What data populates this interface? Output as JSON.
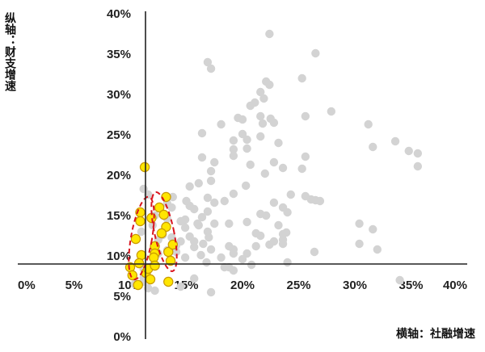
{
  "chart_data": {
    "type": "scatter",
    "title": "",
    "xlabel": "横轴：社融增速",
    "ylabel": "纵轴：财支增速",
    "xlim": [
      0,
      40
    ],
    "ylim": [
      0,
      40
    ],
    "x_ticks": [
      "0%",
      "5%",
      "10%",
      "15%",
      "20%",
      "25%",
      "30%",
      "35%",
      "40%"
    ],
    "y_ticks": [
      "0%",
      "5%",
      "10%",
      "15%",
      "20%",
      "25%",
      "30%",
      "35%",
      "40%"
    ],
    "grid": false,
    "colors": {
      "gray": "#d3d3d3",
      "highlight_fill": "#ffe600",
      "highlight_stroke": "#c99a00",
      "dashed_ellipse": "#d9141e",
      "axis": "#222222"
    },
    "series": [
      {
        "points": [
          [
            22.4,
            37.5
          ],
          [
            26.5,
            35.1
          ],
          [
            16.9,
            34.0
          ],
          [
            17.2,
            33.2
          ],
          [
            22.1,
            31.6
          ],
          [
            22.4,
            31.2
          ],
          [
            21.6,
            30.3
          ],
          [
            21.9,
            29.5
          ],
          [
            21.1,
            29.0
          ],
          [
            20.7,
            28.6
          ],
          [
            25.3,
            32.0
          ],
          [
            25.6,
            27.3
          ],
          [
            27.9,
            27.9
          ],
          [
            19.6,
            27.1
          ],
          [
            20.0,
            26.9
          ],
          [
            21.6,
            27.3
          ],
          [
            22.8,
            26.5
          ],
          [
            18.1,
            26.3
          ],
          [
            16.4,
            25.2
          ],
          [
            20.0,
            25.1
          ],
          [
            19.2,
            24.3
          ],
          [
            20.4,
            24.4
          ],
          [
            21.6,
            24.8
          ],
          [
            23.2,
            24.0
          ],
          [
            19.2,
            23.2
          ],
          [
            20.4,
            23.3
          ],
          [
            19.2,
            22.4
          ],
          [
            16.4,
            22.2
          ],
          [
            17.5,
            21.6
          ],
          [
            22.8,
            21.6
          ],
          [
            25.6,
            22.3
          ],
          [
            25.3,
            20.8
          ],
          [
            23.6,
            20.9
          ],
          [
            17.2,
            20.5
          ],
          [
            17.2,
            19.3
          ],
          [
            16.1,
            19.0
          ],
          [
            15.3,
            18.6
          ],
          [
            11.2,
            18.3
          ],
          [
            11.6,
            17.6
          ],
          [
            19.2,
            17.7
          ],
          [
            16.9,
            17.2
          ],
          [
            26.1,
            17.0
          ],
          [
            26.5,
            16.9
          ],
          [
            25.6,
            17.4
          ],
          [
            26.9,
            16.8
          ],
          [
            17.5,
            16.6
          ],
          [
            13.3,
            16.5
          ],
          [
            18.4,
            16.8
          ],
          [
            22.8,
            16.6
          ],
          [
            23.6,
            16.0
          ],
          [
            15.7,
            15.8
          ],
          [
            16.9,
            15.5
          ],
          [
            14.9,
            14.5
          ],
          [
            12.2,
            15.0
          ],
          [
            16.4,
            14.8
          ],
          [
            21.6,
            15.2
          ],
          [
            22.1,
            15.0
          ],
          [
            14.5,
            14.3
          ],
          [
            17.5,
            14.0
          ],
          [
            20.4,
            14.2
          ],
          [
            23.2,
            13.8
          ],
          [
            12.0,
            13.8
          ],
          [
            14.9,
            13.5
          ],
          [
            16.1,
            13.8
          ],
          [
            16.9,
            13.0
          ],
          [
            21.2,
            12.8
          ],
          [
            21.6,
            12.5
          ],
          [
            23.6,
            12.7
          ],
          [
            23.9,
            12.9
          ],
          [
            15.3,
            12.4
          ],
          [
            13.7,
            12.3
          ],
          [
            14.5,
            11.8
          ],
          [
            15.7,
            11.8
          ],
          [
            16.5,
            11.5
          ],
          [
            18.8,
            11.2
          ],
          [
            21.2,
            11.2
          ],
          [
            22.4,
            11.4
          ],
          [
            23.6,
            11.5
          ],
          [
            22.8,
            11.8
          ],
          [
            14.1,
            11.3
          ],
          [
            15.7,
            11.1
          ],
          [
            17.2,
            10.8
          ],
          [
            19.2,
            10.8
          ],
          [
            13.3,
            10.7
          ],
          [
            12.5,
            10.3
          ],
          [
            19.2,
            10.3
          ],
          [
            20.4,
            10.3
          ],
          [
            18.1,
            9.8
          ],
          [
            14.9,
            9.8
          ],
          [
            16.8,
            9.2
          ],
          [
            20.0,
            9.6
          ],
          [
            24.0,
            9.2
          ],
          [
            26.4,
            10.5
          ],
          [
            11.6,
            8.6
          ],
          [
            12.0,
            8.8
          ],
          [
            11.2,
            8.4
          ],
          [
            18.8,
            8.6
          ],
          [
            19.2,
            8.2
          ],
          [
            15.7,
            7.2
          ],
          [
            11.2,
            7.3
          ],
          [
            11.2,
            6.8
          ],
          [
            10.4,
            6.5
          ],
          [
            11.6,
            6.0
          ],
          [
            14.5,
            6.2
          ],
          [
            17.2,
            5.5
          ],
          [
            12.2,
            5.7
          ],
          [
            31.2,
            26.3
          ],
          [
            31.6,
            23.5
          ],
          [
            33.6,
            24.2
          ],
          [
            34.8,
            23.0
          ],
          [
            35.6,
            22.7
          ],
          [
            35.6,
            21.1
          ],
          [
            30.4,
            14.0
          ],
          [
            31.6,
            13.3
          ],
          [
            30.4,
            11.5
          ],
          [
            32.0,
            10.8
          ],
          [
            34.0,
            7.0
          ],
          [
            11.0,
            13.0
          ],
          [
            13.7,
            16.0
          ],
          [
            12.5,
            12.0
          ],
          [
            15.3,
            16.2
          ],
          [
            13.3,
            14.6
          ],
          [
            14.1,
            10.5
          ],
          [
            20.8,
            8.9
          ],
          [
            18.4,
            8.6
          ],
          [
            17.0,
            12.3
          ],
          [
            16.3,
            10.1
          ],
          [
            24.3,
            17.6
          ],
          [
            20.7,
            21.3
          ],
          [
            22.0,
            20.2
          ],
          [
            18.8,
            14.0
          ],
          [
            20.3,
            18.7
          ],
          [
            24.0,
            15.4
          ],
          [
            21.8,
            26.4
          ],
          [
            22.5,
            27.0
          ],
          [
            23.6,
            12.0
          ],
          [
            16.0,
            14.0
          ],
          [
            15.0,
            16.8
          ],
          [
            13.8,
            17.3
          ],
          [
            12.9,
            12.6
          ]
        ]
      },
      {
        "points": [
          [
            11.3,
            21.0
          ],
          [
            12.6,
            16.0
          ],
          [
            13.2,
            17.3
          ],
          [
            10.9,
            15.4
          ],
          [
            11.9,
            14.7
          ],
          [
            10.9,
            14.3
          ],
          [
            13.0,
            15.1
          ],
          [
            13.2,
            13.6
          ],
          [
            10.5,
            12.1
          ],
          [
            12.8,
            12.8
          ],
          [
            12.2,
            11.2
          ],
          [
            12.2,
            10.3
          ],
          [
            11.0,
            10.1
          ],
          [
            13.4,
            10.5
          ],
          [
            13.8,
            11.4
          ],
          [
            12.1,
            9.8
          ],
          [
            10.8,
            9.1
          ],
          [
            13.6,
            9.4
          ],
          [
            10.0,
            8.6
          ],
          [
            11.4,
            7.9
          ],
          [
            11.8,
            7.1
          ],
          [
            10.2,
            7.6
          ],
          [
            10.7,
            6.4
          ],
          [
            13.4,
            6.8
          ],
          [
            11.6,
            8.4
          ],
          [
            12.2,
            8.8
          ]
        ]
      }
    ]
  }
}
